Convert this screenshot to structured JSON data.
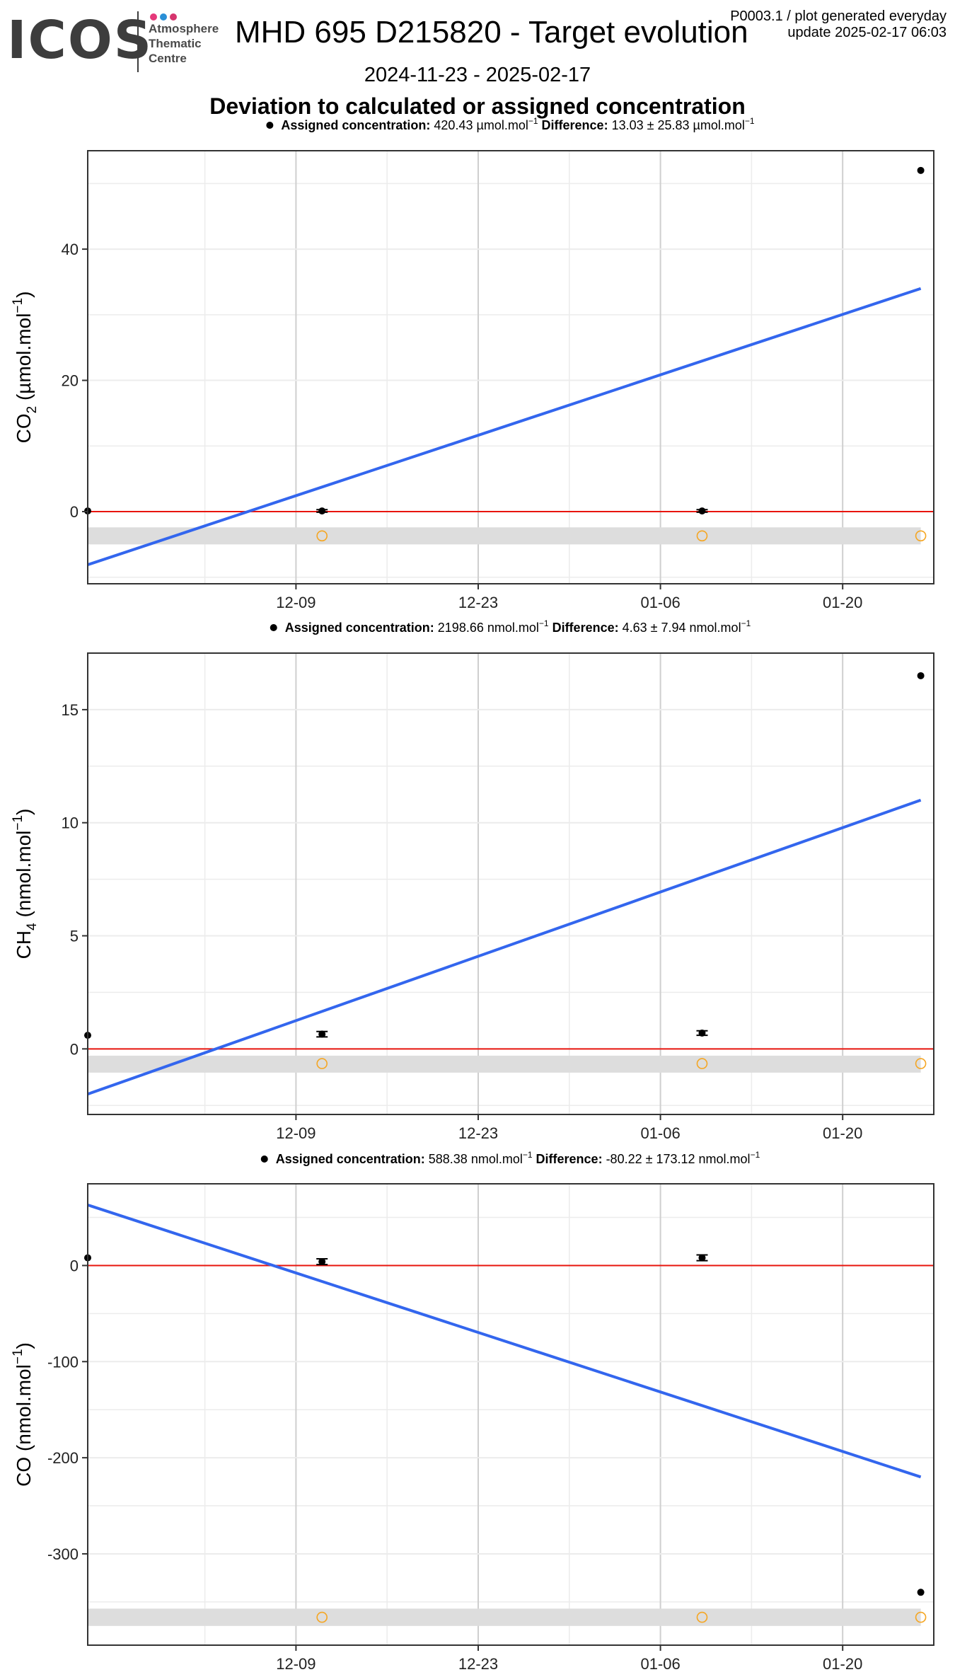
{
  "header": {
    "logo": {
      "brand": "ICOS",
      "lines": [
        "Atmosphere",
        "Thematic",
        "Centre"
      ],
      "dot_colors": [
        "#e5397a",
        "#2a8fd6",
        "#d6356e"
      ]
    },
    "title": "MHD 695 D215820 - Target evolution",
    "plot_id": "P0003.1 / plot generated everyday",
    "update": "update  2025-02-17 06:03",
    "date_range": "2024-11-23 - 2025-02-17",
    "subtitle": "Deviation to calculated or assigned concentration"
  },
  "colors": {
    "trend": "#3366ee",
    "zero_line": "#e8150e",
    "points": "#000000",
    "open_circles": "#f5a623",
    "band": "#dddddd",
    "grid_major": "#cfcfcf",
    "grid_minor": "#ececec"
  },
  "chart_data": [
    {
      "type": "scatter",
      "gas": "CO2",
      "ylabel": "CO2 (µmol.mol−1)",
      "ylabel_main": "CO",
      "ylabel_sub": "2",
      "ylabel_unit": " (µmol.mol",
      "ylabel_sup": "−1",
      "ylabel_close": ")",
      "legend": {
        "assigned_label": "Assigned concentration:",
        "assigned_value": "420.43 µmol.mol",
        "difference_label": "Difference:",
        "difference_value": "13.03 ± 25.83 µmol.mol",
        "unit_sup": "−1"
      },
      "x_ticks": [
        "12-09",
        "12-23",
        "01-06",
        "01-20"
      ],
      "x_tick_days": [
        16,
        30,
        44,
        58
      ],
      "xlim_days": [
        0,
        65
      ],
      "ylim": [
        -11,
        55
      ],
      "y_ticks": [
        0,
        20,
        40
      ],
      "points": [
        {
          "day": 0,
          "y": 0.1,
          "err": 0
        },
        {
          "day": 18,
          "y": 0.1,
          "err": 0.2
        },
        {
          "day": 47.2,
          "y": 0.1,
          "err": 0.2
        },
        {
          "day": 64,
          "y": 52
        }
      ],
      "open_circles": [
        {
          "day": 18,
          "y": -3.7
        },
        {
          "day": 47.2,
          "y": -3.7
        },
        {
          "day": 64,
          "y": -3.7
        }
      ],
      "band": [
        -5,
        -2.4
      ],
      "trend": [
        {
          "day": 0,
          "y": -8.1
        },
        {
          "day": 64,
          "y": 34
        }
      ]
    },
    {
      "type": "scatter",
      "gas": "CH4",
      "ylabel": "CH4 (nmol.mol−1)",
      "ylabel_main": "CH",
      "ylabel_sub": "4",
      "ylabel_unit": " (nmol.mol",
      "ylabel_sup": "−1",
      "ylabel_close": ")",
      "legend": {
        "assigned_label": "Assigned concentration:",
        "assigned_value": "2198.66 nmol.mol",
        "difference_label": "Difference:",
        "difference_value": "4.63 ± 7.94 nmol.mol",
        "unit_sup": "−1"
      },
      "x_ticks": [
        "12-09",
        "12-23",
        "01-06",
        "01-20"
      ],
      "x_tick_days": [
        16,
        30,
        44,
        58
      ],
      "xlim_days": [
        0,
        65
      ],
      "ylim": [
        -2.9,
        17.5
      ],
      "y_ticks": [
        0,
        5,
        10,
        15
      ],
      "points": [
        {
          "day": 0,
          "y": 0.6,
          "err": 0
        },
        {
          "day": 18,
          "y": 0.65,
          "err": 0.12
        },
        {
          "day": 47.2,
          "y": 0.7,
          "err": 0.1
        },
        {
          "day": 64,
          "y": 16.5
        }
      ],
      "open_circles": [
        {
          "day": 18,
          "y": -0.65
        },
        {
          "day": 47.2,
          "y": -0.65
        },
        {
          "day": 64,
          "y": -0.65
        }
      ],
      "band": [
        -1.05,
        -0.3
      ],
      "trend": [
        {
          "day": 0,
          "y": -2.0
        },
        {
          "day": 64,
          "y": 11.0
        }
      ]
    },
    {
      "type": "scatter",
      "gas": "CO",
      "ylabel": "CO (nmol.mol−1)",
      "ylabel_main": "CO",
      "ylabel_sub": "",
      "ylabel_unit": " (nmol.mol",
      "ylabel_sup": "−1",
      "ylabel_close": ")",
      "legend": {
        "assigned_label": "Assigned concentration:",
        "assigned_value": "588.38 nmol.mol",
        "difference_label": "Difference:",
        "difference_value": "-80.22 ± 173.12 nmol.mol",
        "unit_sup": "−1"
      },
      "x_ticks": [
        "12-09",
        "12-23",
        "01-06",
        "01-20"
      ],
      "x_tick_days": [
        16,
        30,
        44,
        58
      ],
      "xlim_days": [
        0,
        65
      ],
      "ylim": [
        -395,
        85
      ],
      "y_ticks": [
        0,
        -100,
        -200,
        -300
      ],
      "points": [
        {
          "day": 0,
          "y": 8,
          "err": 0
        },
        {
          "day": 18,
          "y": 4,
          "err": 3
        },
        {
          "day": 47.2,
          "y": 8,
          "err": 3
        },
        {
          "day": 64,
          "y": -340
        }
      ],
      "open_circles": [
        {
          "day": 18,
          "y": -366
        },
        {
          "day": 47.2,
          "y": -366
        },
        {
          "day": 64,
          "y": -366
        }
      ],
      "band": [
        -375,
        -357
      ],
      "trend": [
        {
          "day": 0,
          "y": 63
        },
        {
          "day": 64,
          "y": -220
        }
      ]
    }
  ]
}
